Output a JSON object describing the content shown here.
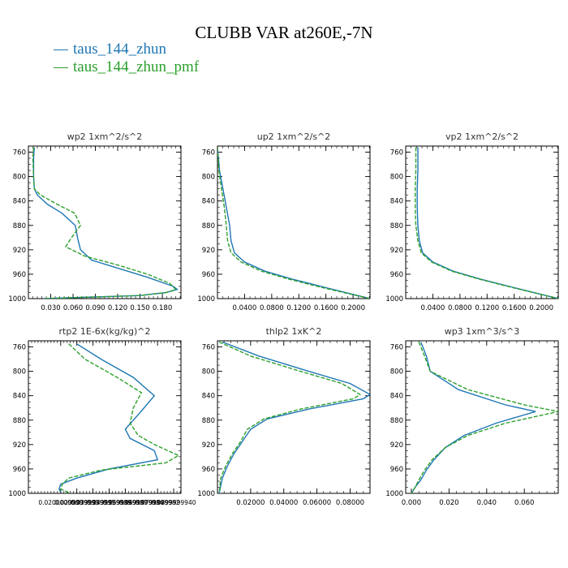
{
  "title": "CLUBB VAR at260E,-7N",
  "legend": [
    {
      "name": "taus_144_zhun",
      "color": "#1f77b4"
    },
    {
      "name": "taus_144_zhun_pmf",
      "color": "#2ca02c"
    }
  ],
  "chart_data": [
    {
      "type": "line",
      "title": "wp2  1xm^2/s^2",
      "xlim": [
        0.0,
        0.205
      ],
      "ylim": [
        1000,
        750
      ],
      "xticks": [
        0.03,
        0.06,
        0.09,
        0.12,
        0.15,
        0.18
      ],
      "xtick_labels": [
        "0.030",
        "0.060",
        "0.090",
        "0.120",
        "0.150",
        "0.180"
      ],
      "yticks": [
        760,
        800,
        840,
        880,
        920,
        960,
        1000
      ],
      "ytick_labels": [
        "760",
        "800",
        "840",
        "880",
        "920",
        "960",
        "1000"
      ],
      "series": [
        {
          "name": "taus_144_zhun",
          "line": "solid",
          "x": [
            0.008,
            0.007,
            0.007,
            0.008,
            0.012,
            0.025,
            0.045,
            0.063,
            0.066,
            0.07,
            0.085,
            0.12,
            0.16,
            0.195,
            0.2,
            0.185,
            0.15,
            0.02
          ],
          "y": [
            752,
            770,
            800,
            820,
            830,
            845,
            860,
            880,
            900,
            920,
            937,
            950,
            965,
            980,
            985,
            990,
            995,
            1000
          ]
        },
        {
          "name": "taus_144_zhun_pmf",
          "line": "dashed",
          "x": [
            0.007,
            0.006,
            0.007,
            0.008,
            0.016,
            0.038,
            0.062,
            0.07,
            0.058,
            0.05,
            0.075,
            0.12,
            0.16,
            0.19,
            0.198,
            0.185,
            0.15,
            0.02
          ],
          "y": [
            752,
            770,
            800,
            820,
            830,
            845,
            860,
            880,
            900,
            915,
            930,
            945,
            960,
            975,
            985,
            990,
            995,
            1000
          ]
        }
      ]
    },
    {
      "type": "line",
      "title": "up2  1xm^2/s^2",
      "xlim": [
        0.0,
        0.225
      ],
      "ylim": [
        1000,
        750
      ],
      "xticks": [
        0.04,
        0.08,
        0.12,
        0.16,
        0.2
      ],
      "xtick_labels": [
        "0.0400",
        "0.0800",
        "0.1200",
        "0.1600",
        "0.2000"
      ],
      "yticks": [
        760,
        800,
        840,
        880,
        920,
        960,
        1000
      ],
      "ytick_labels": [
        "760",
        "800",
        "840",
        "880",
        "920",
        "960",
        "1000"
      ],
      "series": [
        {
          "name": "taus_144_zhun",
          "line": "solid",
          "x": [
            0.0,
            0.003,
            0.008,
            0.013,
            0.018,
            0.02,
            0.025,
            0.04,
            0.07,
            0.11,
            0.16,
            0.225
          ],
          "y": [
            752,
            790,
            820,
            850,
            880,
            905,
            925,
            940,
            955,
            968,
            982,
            1000
          ]
        },
        {
          "name": "taus_144_zhun_pmf",
          "line": "dashed",
          "x": [
            0.0,
            0.002,
            0.006,
            0.01,
            0.013,
            0.015,
            0.02,
            0.035,
            0.065,
            0.105,
            0.155,
            0.225
          ],
          "y": [
            752,
            790,
            820,
            850,
            880,
            905,
            925,
            940,
            955,
            968,
            982,
            1000
          ]
        }
      ]
    },
    {
      "type": "line",
      "title": "vp2  1xm^2/s^2",
      "xlim": [
        0.0,
        0.225
      ],
      "ylim": [
        1000,
        750
      ],
      "xticks": [
        0.04,
        0.08,
        0.12,
        0.16,
        0.2
      ],
      "xtick_labels": [
        "0.0400",
        "0.0800",
        "0.1200",
        "0.1600",
        "0.2000"
      ],
      "yticks": [
        760,
        800,
        840,
        880,
        920,
        960,
        1000
      ],
      "ytick_labels": [
        "760",
        "800",
        "840",
        "880",
        "920",
        "960",
        "1000"
      ],
      "series": [
        {
          "name": "taus_144_zhun",
          "line": "solid",
          "x": [
            0.018,
            0.018,
            0.017,
            0.017,
            0.018,
            0.02,
            0.025,
            0.04,
            0.07,
            0.11,
            0.16,
            0.225
          ],
          "y": [
            752,
            790,
            820,
            850,
            880,
            905,
            925,
            940,
            955,
            968,
            982,
            1000
          ]
        },
        {
          "name": "taus_144_zhun_pmf",
          "line": "dashed",
          "x": [
            0.015,
            0.015,
            0.014,
            0.014,
            0.015,
            0.018,
            0.023,
            0.038,
            0.068,
            0.108,
            0.158,
            0.225
          ],
          "y": [
            752,
            790,
            820,
            850,
            880,
            905,
            925,
            940,
            955,
            968,
            982,
            1000
          ]
        }
      ]
    },
    {
      "type": "line",
      "title": "rtp2  1E-6x(kg/kg)^2",
      "xlim": [
        0.0,
        0.0945
      ],
      "ylim": [
        1000,
        750
      ],
      "xticks": [
        0.02,
        0.03,
        0.04,
        0.05,
        0.06,
        0.07,
        0.08,
        0.09
      ],
      "xtick_labels": [
        "0.0200000000",
        "0.0299999993",
        "0.0399999991",
        "0.0499999989",
        "0.0599999987",
        "0.0699999984",
        "0.0799999982",
        "0.0899999940"
      ],
      "yticks": [
        760,
        800,
        840,
        880,
        920,
        960,
        1000
      ],
      "ytick_labels": [
        "760",
        "800",
        "840",
        "880",
        "920",
        "960",
        "1000"
      ],
      "series": [
        {
          "name": "taus_144_zhun",
          "line": "solid",
          "x": [
            0.03,
            0.045,
            0.065,
            0.078,
            0.07,
            0.06,
            0.063,
            0.078,
            0.08,
            0.05,
            0.03,
            0.02,
            0.019,
            0.02
          ],
          "y": [
            755,
            780,
            810,
            840,
            865,
            895,
            910,
            930,
            945,
            960,
            975,
            985,
            993,
            998
          ]
        },
        {
          "name": "taus_144_zhun_pmf",
          "line": "dashed",
          "x": [
            0.025,
            0.035,
            0.055,
            0.07,
            0.065,
            0.063,
            0.068,
            0.078,
            0.093,
            0.085,
            0.045,
            0.025,
            0.021,
            0.02,
            0.026
          ],
          "y": [
            755,
            780,
            810,
            835,
            860,
            885,
            905,
            920,
            938,
            950,
            962,
            975,
            985,
            993,
            1000
          ]
        }
      ]
    },
    {
      "type": "line",
      "title": "thlp2  1xK^2",
      "xlim": [
        0.0,
        0.092
      ],
      "ylim": [
        1000,
        750
      ],
      "xticks": [
        0.02,
        0.04,
        0.06,
        0.08
      ],
      "xtick_labels": [
        "0.02000",
        "0.04000",
        "0.06000",
        "0.08000"
      ],
      "yticks": [
        760,
        800,
        840,
        880,
        920,
        960,
        1000
      ],
      "ytick_labels": [
        "760",
        "800",
        "840",
        "880",
        "920",
        "960",
        "1000"
      ],
      "series": [
        {
          "name": "taus_144_zhun",
          "line": "solid",
          "x": [
            0.003,
            0.025,
            0.055,
            0.08,
            0.092,
            0.088,
            0.055,
            0.03,
            0.02,
            0.015,
            0.01,
            0.006,
            0.003,
            0.001
          ],
          "y": [
            752,
            775,
            800,
            820,
            838,
            845,
            862,
            878,
            895,
            915,
            935,
            955,
            975,
            1000
          ]
        },
        {
          "name": "taus_144_zhun_pmf",
          "line": "dashed",
          "x": [
            0.001,
            0.02,
            0.05,
            0.075,
            0.086,
            0.082,
            0.05,
            0.028,
            0.018,
            0.014,
            0.009,
            0.005,
            0.002,
            0.001
          ],
          "y": [
            752,
            775,
            800,
            820,
            838,
            845,
            862,
            878,
            895,
            915,
            935,
            955,
            975,
            1000
          ]
        }
      ]
    },
    {
      "type": "line",
      "title": "wp3  1xm^3/s^3",
      "xlim": [
        -0.003,
        0.078
      ],
      "ylim": [
        1000,
        750
      ],
      "xticks": [
        0.0,
        0.02,
        0.04,
        0.06
      ],
      "xtick_labels": [
        "0.000",
        "0.020",
        "0.040",
        "0.060"
      ],
      "yticks": [
        760,
        800,
        840,
        880,
        920,
        960,
        1000
      ],
      "ytick_labels": [
        "760",
        "800",
        "840",
        "880",
        "920",
        "960",
        "1000"
      ],
      "series": [
        {
          "name": "taus_144_zhun",
          "line": "solid",
          "x": [
            0.005,
            0.008,
            0.01,
            0.025,
            0.05,
            0.066,
            0.045,
            0.028,
            0.018,
            0.012,
            0.008,
            0.005,
            0.002,
            0.0
          ],
          "y": [
            752,
            775,
            800,
            830,
            855,
            866,
            885,
            905,
            925,
            945,
            962,
            978,
            990,
            1000
          ]
        },
        {
          "name": "taus_144_zhun_pmf",
          "line": "dashed",
          "x": [
            0.004,
            0.007,
            0.01,
            0.03,
            0.06,
            0.078,
            0.05,
            0.03,
            0.018,
            0.011,
            0.007,
            0.004,
            0.002,
            0.0
          ],
          "y": [
            752,
            775,
            800,
            830,
            855,
            866,
            885,
            905,
            925,
            945,
            962,
            978,
            990,
            1000
          ]
        }
      ]
    }
  ]
}
